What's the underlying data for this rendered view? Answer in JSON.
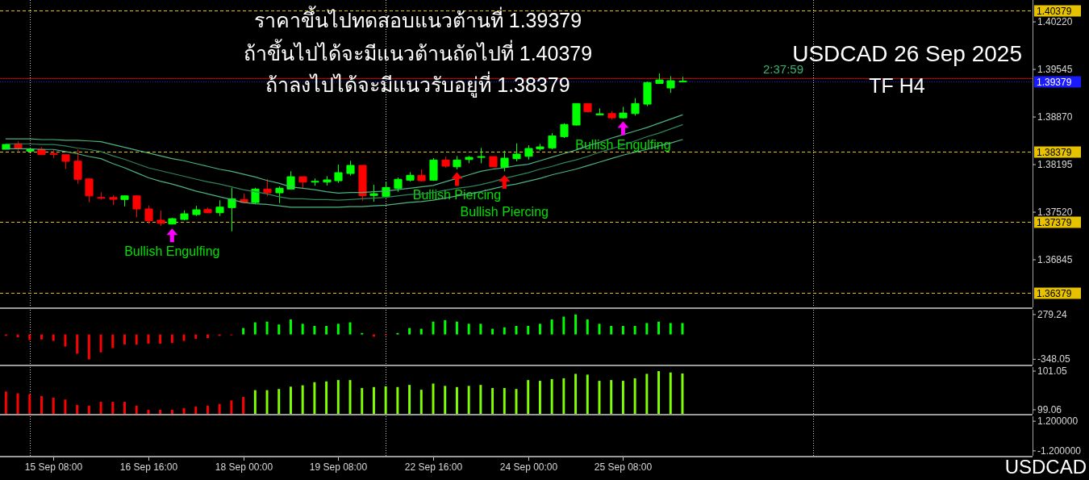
{
  "chart_data": [
    {
      "type": "candlestick",
      "title": "USDCAD 26 Sep 2025",
      "subtitle": "TF H4",
      "annotations": [
        "ราคาขึ้นไปทดสอบแนวต้านที่ 1.39379",
        "ถ้าขึ้นไปได้จะมีแนวต้านถัดไปที่ 1.40379",
        "ถ้าลงไปได้จะมีแนวรับอยู่ที่ 1.38379",
        "2:37:59",
        "USDCAD"
      ],
      "categories": [
        null,
        null,
        null,
        null,
        null,
        null,
        null,
        null,
        null,
        null,
        null,
        null,
        null,
        null,
        null,
        null,
        null,
        null,
        null,
        null,
        null,
        null,
        null,
        null,
        null,
        null,
        null,
        null,
        null,
        null,
        null,
        null,
        null,
        null,
        null,
        null,
        null,
        null,
        null,
        null,
        null,
        null,
        null,
        null,
        null,
        null,
        null,
        null,
        null,
        null,
        null,
        null,
        null,
        null,
        null,
        null,
        null,
        null,
        null,
        null,
        null,
        null,
        null,
        null,
        null,
        null,
        null,
        null,
        null,
        null,
        null,
        null,
        null,
        null,
        null,
        null,
        null,
        null,
        null,
        null,
        null,
        null,
        null,
        null,
        null,
        null,
        null
      ],
      "ohlc": [
        [
          1.38412,
          1.38481,
          1.38412,
          1.38481
        ],
        [
          1.38489,
          1.38527,
          1.38386,
          1.38432
        ],
        [
          1.38386,
          1.38412,
          1.38386,
          1.38412
        ],
        [
          1.38412,
          1.38443,
          1.38329,
          1.38336
        ],
        [
          1.38352,
          1.38401,
          1.3829,
          1.38344
        ],
        [
          1.38336,
          1.38336,
          1.38134,
          1.38241
        ],
        [
          1.38244,
          1.38412,
          1.37924,
          1.37986
        ],
        [
          1.37992,
          1.38,
          1.37661,
          1.37752
        ],
        [
          1.37729,
          1.37803,
          1.377,
          1.37722
        ],
        [
          1.37729,
          1.3776,
          1.3762,
          1.37703
        ],
        [
          1.377,
          1.37752,
          1.37603,
          1.37752
        ],
        [
          1.37752,
          1.37752,
          1.37448,
          1.37566
        ],
        [
          1.37566,
          1.37615,
          1.37356,
          1.37398
        ],
        [
          1.37406,
          1.37543,
          1.37325,
          1.37363
        ],
        [
          1.37352,
          1.3744,
          1.37345,
          1.37428
        ],
        [
          1.37417,
          1.37546,
          1.37406,
          1.37497
        ],
        [
          1.37486,
          1.37611,
          1.37466,
          1.37554
        ],
        [
          1.37558,
          1.37585,
          1.37505,
          1.37512
        ],
        [
          1.37512,
          1.37688,
          1.37466,
          1.37592
        ],
        [
          1.37585,
          1.37867,
          1.37249,
          1.37711
        ],
        [
          1.377,
          1.37787,
          1.37649,
          1.37657
        ],
        [
          1.37657,
          1.37867,
          1.37638,
          1.37848
        ],
        [
          1.37848,
          1.37992,
          1.37745,
          1.37795
        ],
        [
          1.37795,
          1.37886,
          1.37649,
          1.3786
        ],
        [
          1.37848,
          1.381,
          1.37848,
          1.38023
        ],
        [
          1.38023,
          1.38023,
          1.3786,
          1.37947
        ],
        [
          1.37947,
          1.38,
          1.37894,
          1.37958
        ],
        [
          1.37947,
          1.38031,
          1.37898,
          1.37978
        ],
        [
          1.37966,
          1.38195,
          1.37935,
          1.38081
        ],
        [
          1.38069,
          1.38249,
          1.38038,
          1.38184
        ],
        [
          1.38184,
          1.38184,
          1.3768,
          1.37755
        ],
        [
          1.37757,
          1.37909,
          1.37669,
          1.37783
        ],
        [
          1.37745,
          1.37955,
          1.37734,
          1.37871
        ],
        [
          1.3786,
          1.38012,
          1.37809,
          1.37986
        ],
        [
          1.37974,
          1.38089,
          1.37955,
          1.38043
        ],
        [
          1.38043,
          1.38126,
          1.37955,
          1.37966
        ],
        [
          1.37974,
          1.38287,
          1.37963,
          1.3826
        ],
        [
          1.3826,
          1.38306,
          1.38153,
          1.38172
        ],
        [
          1.38164,
          1.38317,
          1.38126,
          1.3826
        ],
        [
          1.38267,
          1.38317,
          1.38214,
          1.38298
        ],
        [
          1.38298,
          1.38432,
          1.38214,
          1.38309
        ],
        [
          1.38309,
          1.38309,
          1.38164,
          1.38164
        ],
        [
          1.38157,
          1.38393,
          1.381,
          1.38287
        ],
        [
          1.38279,
          1.38496,
          1.38241,
          1.38344
        ],
        [
          1.38313,
          1.3847,
          1.38267,
          1.38424
        ],
        [
          1.3842,
          1.38489,
          1.38393,
          1.38447
        ],
        [
          1.38432,
          1.38641,
          1.38412,
          1.38603
        ],
        [
          1.38592,
          1.38782,
          1.38572,
          1.38764
        ],
        [
          1.38756,
          1.39061,
          1.38748,
          1.39061
        ],
        [
          1.39061,
          1.39061,
          1.38935,
          1.38947
        ],
        [
          1.38901,
          1.38992,
          1.38901,
          1.38916
        ],
        [
          1.38919,
          1.38954,
          1.38832,
          1.38858
        ],
        [
          1.38858,
          1.39015,
          1.38847,
          1.38927
        ],
        [
          1.38919,
          1.39137,
          1.38889,
          1.39061
        ],
        [
          1.39053,
          1.39373,
          1.39022,
          1.39359
        ],
        [
          1.39347,
          1.39488,
          1.39347,
          1.39396
        ],
        [
          1.39282,
          1.3945,
          1.39213,
          1.39385
        ],
        [
          1.39372,
          1.39442,
          1.39365,
          1.39379
        ],
        null,
        null,
        null,
        null,
        null,
        null,
        null,
        null,
        null,
        null,
        null,
        null,
        null,
        null,
        null,
        null,
        null,
        null,
        null,
        null,
        null,
        null,
        null,
        null,
        null,
        null,
        null,
        null,
        null
      ],
      "colors": [
        "#00ff00",
        "#ff0000",
        "#00ff00",
        "#ff0000",
        "#ff0000",
        "#ff0000",
        "#ff0000",
        "#ff0000",
        "#ff0000",
        "#ff0000",
        "#00ff00",
        "#ff0000",
        "#ff0000",
        "#ff0000",
        "#00ff00",
        "#00ff00",
        "#00ff00",
        "#ff0000",
        "#00ff00",
        "#00ff00",
        "#ff0000",
        "#00ff00",
        "#ff0000",
        "#00ff00",
        "#00ff00",
        "#ff0000",
        "#00ff00",
        "#00ff00",
        "#00ff00",
        "#00ff00",
        "#ff0000",
        "#00ff00",
        "#00ff00",
        "#00ff00",
        "#00ff00",
        "#ff0000",
        "#00ff00",
        "#ff0000",
        "#00ff00",
        "#00ff00",
        "#00ff00",
        "#ff0000",
        "#00ff00",
        "#00ff00",
        "#00ff00",
        "#00ff00",
        "#00ff00",
        "#00ff00",
        "#00ff00",
        "#ff0000",
        "#00ff00",
        "#ff0000",
        "#00ff00",
        "#00ff00",
        "#00ff00",
        "#00ff00",
        "#00ff00",
        "#00ff00",
        null,
        null,
        null,
        null,
        null,
        null,
        null,
        null,
        null,
        null,
        null,
        null,
        null,
        null,
        null,
        null,
        null,
        null,
        null,
        null,
        null,
        null,
        null,
        null,
        null,
        null,
        null,
        null,
        null
      ],
      "series": [
        {
          "type": "line",
          "color": "#4db380",
          "values": [
            1.3856,
            1.3856,
            1.3856,
            1.3855,
            1.3855,
            1.3854,
            1.3854,
            1.3853,
            1.3852,
            1.3848,
            1.3844,
            1.384,
            1.3836,
            1.3832,
            1.3828,
            1.3825,
            1.3821,
            1.3817,
            1.3813,
            1.381,
            1.3806,
            1.3802,
            1.3797,
            1.3793,
            1.3788,
            1.3786,
            1.3784,
            1.3781,
            1.3779,
            1.378,
            1.378,
            1.3781,
            1.3782,
            1.3784,
            1.3786,
            1.3788,
            1.379,
            1.3795,
            1.38,
            1.3805,
            1.381,
            1.3813,
            1.3815,
            1.3818,
            1.382,
            1.3825,
            1.383,
            1.3835,
            1.384,
            1.3846,
            1.3851,
            1.3857,
            1.3862,
            1.3867,
            1.3872,
            1.3878,
            1.3884,
            1.389,
            null,
            null,
            null,
            null,
            null,
            null,
            null,
            null,
            null,
            null,
            null,
            null,
            null,
            null,
            null,
            null,
            null,
            null,
            null,
            null,
            null,
            null,
            null,
            null,
            null,
            null,
            null,
            null,
            null
          ]
        },
        {
          "type": "line",
          "color": "#2f855a",
          "values": [
            1.3849,
            1.3849,
            1.3849,
            1.3848,
            1.3848,
            1.3846,
            1.3843,
            1.3841,
            1.3838,
            1.3832,
            1.3827,
            1.3821,
            1.3815,
            1.3811,
            1.3807,
            1.3803,
            1.3799,
            1.3795,
            1.3792,
            1.3788,
            1.3784,
            1.3781,
            1.3778,
            1.3774,
            1.3771,
            1.3771,
            1.377,
            1.377,
            1.3769,
            1.377,
            1.3771,
            1.3772,
            1.3773,
            1.3775,
            1.3777,
            1.3778,
            1.378,
            1.3783,
            1.3786,
            1.3788,
            1.3791,
            1.3795,
            1.38,
            1.3804,
            1.3808,
            1.3813,
            1.3817,
            1.3822,
            1.3826,
            1.3831,
            1.3837,
            1.3842,
            1.3847,
            1.3853,
            1.3859,
            1.3864,
            1.387,
            1.3876,
            null,
            null,
            null,
            null,
            null,
            null,
            null,
            null,
            null,
            null,
            null,
            null,
            null,
            null,
            null,
            null,
            null,
            null,
            null,
            null,
            null,
            null,
            null,
            null,
            null,
            null,
            null,
            null,
            null
          ]
        },
        {
          "type": "line",
          "color": "#4db380",
          "values": [
            1.3842,
            1.3842,
            1.3842,
            1.3841,
            1.3841,
            1.3838,
            1.3835,
            1.3831,
            1.3828,
            1.3821,
            1.3815,
            1.3808,
            1.3801,
            1.3796,
            1.3792,
            1.3787,
            1.3782,
            1.3778,
            1.3774,
            1.377,
            1.3766,
            1.3764,
            1.3763,
            1.3761,
            1.3759,
            1.3759,
            1.3759,
            1.3759,
            1.3759,
            1.376,
            1.376,
            1.3761,
            1.3762,
            1.3764,
            1.3766,
            1.3767,
            1.3769,
            1.3772,
            1.3775,
            1.3778,
            1.3781,
            1.3785,
            1.3789,
            1.3792,
            1.3796,
            1.38,
            1.3805,
            1.3809,
            1.3813,
            1.3818,
            1.3823,
            1.3828,
            1.3833,
            1.3837,
            1.3841,
            1.3846,
            1.385,
            1.3855,
            null,
            null,
            null,
            null,
            null,
            null,
            null,
            null,
            null,
            null,
            null,
            null,
            null,
            null,
            null,
            null,
            null,
            null,
            null,
            null,
            null,
            null,
            null,
            null,
            null,
            null,
            null,
            null,
            null
          ]
        },
        {
          "type": "scatter",
          "name": "Bullish Engulfing",
          "color": "#ff00ff",
          "marker": "triangle",
          "values": [
            null,
            null,
            null,
            null,
            null,
            null,
            null,
            null,
            null,
            null,
            null,
            null,
            null,
            null,
            1.3719,
            null,
            null,
            null,
            null,
            null,
            null,
            null,
            null,
            null,
            null,
            null,
            null,
            null,
            null,
            null,
            null,
            null,
            null,
            null,
            null,
            null,
            null,
            null,
            null,
            null,
            null,
            null,
            null,
            null,
            null,
            null,
            null,
            null,
            null,
            null,
            null,
            null,
            1.3871,
            null,
            null,
            null,
            null,
            null,
            null,
            null,
            null,
            null,
            null,
            null,
            null,
            null,
            null,
            null,
            null,
            null,
            null,
            null,
            null,
            null,
            null,
            null,
            null,
            null,
            null,
            null,
            null,
            null,
            null,
            null,
            null,
            null,
            null
          ]
        },
        {
          "type": "scatter",
          "name": "Bullish Piercing",
          "color": "#ff0000",
          "marker": "triangle",
          "values": [
            null,
            null,
            null,
            null,
            null,
            null,
            null,
            null,
            null,
            null,
            null,
            null,
            null,
            null,
            null,
            null,
            null,
            null,
            null,
            null,
            null,
            null,
            null,
            null,
            null,
            null,
            null,
            null,
            null,
            null,
            null,
            null,
            null,
            null,
            null,
            null,
            null,
            null,
            1.3799,
            null,
            null,
            null,
            1.3795,
            null,
            null,
            null,
            null,
            null,
            null,
            null,
            null,
            null,
            null,
            null,
            null,
            null,
            null,
            null,
            null,
            null,
            null,
            null,
            null,
            null,
            null,
            null,
            null,
            null,
            null,
            null,
            null,
            null,
            null,
            null,
            null,
            null,
            null,
            null,
            null,
            null,
            null,
            null,
            null,
            null,
            null,
            null,
            null
          ]
        }
      ],
      "ylim": [
        1.3617,
        1.4053
      ],
      "yticks": [
        {
          "value": 1.4022,
          "label": "1.40220"
        },
        {
          "value": 1.39545,
          "label": "1.39545"
        },
        {
          "value": 1.3887,
          "label": "1.38870"
        },
        {
          "value": 1.38195,
          "label": "1.38195"
        },
        {
          "value": 1.3752,
          "label": "1.37520"
        },
        {
          "value": 1.36845,
          "label": "1.36845"
        }
      ],
      "ref_lines": [
        {
          "axis": "y",
          "value": 1.40379,
          "label": "1.40379",
          "color": "#e6c200",
          "line_style": "dashed"
        },
        {
          "axis": "y",
          "value": 1.38379,
          "label": "1.38379",
          "color": "#e6c200",
          "line_style": "dashed"
        },
        {
          "axis": "y",
          "value": 1.37379,
          "label": "1.37379",
          "color": "#e6c200",
          "line_style": "dashed"
        },
        {
          "axis": "y",
          "value": 1.36379,
          "label": "1.36379",
          "color": "#e6c200",
          "line_style": "dashed"
        },
        {
          "axis": "y",
          "value": 1.3942,
          "color": "#c00000",
          "line_style": "solid"
        },
        {
          "axis": "y",
          "value": 1.39379,
          "label": "1.39379",
          "color": "#1a1aff",
          "line_style": "dotted"
        }
      ],
      "grid": "x",
      "tick_labels": "y"
    },
    {
      "type": "bar",
      "categories": [
        null,
        null,
        null,
        null,
        null,
        null,
        null,
        null,
        null,
        null,
        null,
        null,
        null,
        null,
        null,
        null,
        null,
        null,
        null,
        null,
        null,
        null,
        null,
        null,
        null,
        null,
        null,
        null,
        null,
        null,
        null,
        null,
        null,
        null,
        null,
        null,
        null,
        null,
        null,
        null,
        null,
        null,
        null,
        null,
        null,
        null,
        null,
        null,
        null,
        null,
        null,
        null,
        null,
        null,
        null,
        null,
        null,
        null,
        null,
        null,
        null,
        null,
        null,
        null,
        null,
        null,
        null,
        null,
        null,
        null,
        null,
        null,
        null,
        null,
        null,
        null,
        null,
        null,
        null,
        null,
        null,
        null,
        null,
        null,
        null,
        null,
        null
      ],
      "values": [
        -20,
        -40,
        -80,
        -70,
        -90,
        -170,
        -270,
        -350,
        -250,
        -190,
        -140,
        -140,
        -130,
        -130,
        -120,
        -90,
        -60,
        -50,
        -20,
        -10,
        90,
        170,
        180,
        140,
        210,
        150,
        120,
        120,
        150,
        170,
        20,
        -30,
        -10,
        20,
        90,
        80,
        180,
        200,
        180,
        150,
        150,
        80,
        100,
        120,
        120,
        150,
        210,
        250,
        280,
        210,
        150,
        120,
        120,
        120,
        160,
        180,
        160,
        160,
        null,
        null,
        null,
        null,
        null,
        null,
        null,
        null,
        null,
        null,
        null,
        null,
        null,
        null,
        null,
        null,
        null,
        null,
        null,
        null,
        null,
        null,
        null,
        null,
        null,
        null,
        null,
        null,
        null
      ],
      "colors": [
        "#ff0000",
        "#ff0000",
        "#ff0000",
        "#ff0000",
        "#ff0000",
        "#ff0000",
        "#ff0000",
        "#ff0000",
        "#ff0000",
        "#ff0000",
        "#ff0000",
        "#ff0000",
        "#ff0000",
        "#ff0000",
        "#ff0000",
        "#ff0000",
        "#ff0000",
        "#ff0000",
        "#ff0000",
        "#ff0000",
        "#00ff00",
        "#00ff00",
        "#00ff00",
        "#00ff00",
        "#00ff00",
        "#00ff00",
        "#00ff00",
        "#00ff00",
        "#00ff00",
        "#00ff00",
        "#00ff00",
        "#ff0000",
        "#ff0000",
        "#00ff00",
        "#00ff00",
        "#00ff00",
        "#00ff00",
        "#00ff00",
        "#00ff00",
        "#00ff00",
        "#00ff00",
        "#00ff00",
        "#00ff00",
        "#00ff00",
        "#00ff00",
        "#00ff00",
        "#00ff00",
        "#00ff00",
        "#00ff00",
        "#00ff00",
        "#00ff00",
        "#00ff00",
        "#00ff00",
        "#00ff00",
        "#00ff00",
        "#00ff00",
        "#00ff00",
        "#00ff00",
        null,
        null,
        null,
        null,
        null,
        null,
        null,
        null,
        null,
        null,
        null,
        null,
        null,
        null,
        null,
        null,
        null,
        null,
        null,
        null,
        null,
        null,
        null,
        null,
        null,
        null,
        null,
        null,
        null
      ],
      "ylim": [
        -423,
        346
      ],
      "yticks": [
        279.24,
        -348.05
      ],
      "grid": "x",
      "tick_labels": "y"
    },
    {
      "type": "bar",
      "categories": [
        null,
        null,
        null,
        null,
        null,
        null,
        null,
        null,
        null,
        null,
        null,
        null,
        null,
        null,
        null,
        null,
        null,
        null,
        null,
        null,
        null,
        null,
        null,
        null,
        null,
        null,
        null,
        null,
        null,
        null,
        null,
        null,
        null,
        null,
        null,
        null,
        null,
        null,
        null,
        null,
        null,
        null,
        null,
        null,
        null,
        null,
        null,
        null,
        null,
        null,
        null,
        null,
        null,
        null,
        null,
        null,
        null,
        null,
        null,
        null,
        null,
        null,
        null,
        null,
        null,
        null,
        null,
        null,
        null,
        null,
        null,
        null,
        null,
        null,
        null,
        null,
        null,
        null,
        null,
        null,
        null,
        null,
        null,
        null,
        null,
        null,
        null
      ],
      "values": [
        100.0,
        99.91,
        99.86,
        99.77,
        99.68,
        99.59,
        99.31,
        99.27,
        99.47,
        99.47,
        99.47,
        99.27,
        99.06,
        99.06,
        99.06,
        99.15,
        99.22,
        99.27,
        99.36,
        99.54,
        99.72,
        100.07,
        100.07,
        100.13,
        100.25,
        100.32,
        100.48,
        100.52,
        100.59,
        100.59,
        100.18,
        100.23,
        100.27,
        100.23,
        100.34,
        100.09,
        100.41,
        100.29,
        100.23,
        100.29,
        100.34,
        100.18,
        100.18,
        100.13,
        100.59,
        100.55,
        100.64,
        100.68,
        100.91,
        100.87,
        100.55,
        100.59,
        100.55,
        100.68,
        100.91,
        101.05,
        100.98,
        100.93,
        null,
        null,
        null,
        null,
        null,
        null,
        null,
        null,
        null,
        null,
        null,
        null,
        null,
        null,
        null,
        null,
        null,
        null,
        null,
        null,
        null,
        null,
        null,
        null,
        null,
        null,
        null,
        null,
        null
      ],
      "colors": [
        "#ff0000",
        "#ff0000",
        "#ff0000",
        "#ff0000",
        "#ff0000",
        "#ff0000",
        "#ff0000",
        "#ff0000",
        "#ff0000",
        "#ff0000",
        "#ff0000",
        "#ff0000",
        "#ff0000",
        "#ff0000",
        "#ff0000",
        "#ff0000",
        "#ff0000",
        "#ff0000",
        "#ff0000",
        "#ff0000",
        "#ff0000",
        "#7fff00",
        "#7fff00",
        "#7fff00",
        "#7fff00",
        "#7fff00",
        "#7fff00",
        "#7fff00",
        "#7fff00",
        "#7fff00",
        "#7fff00",
        "#7fff00",
        "#7fff00",
        "#7fff00",
        "#7fff00",
        "#7fff00",
        "#7fff00",
        "#7fff00",
        "#7fff00",
        "#7fff00",
        "#7fff00",
        "#7fff00",
        "#7fff00",
        "#7fff00",
        "#7fff00",
        "#7fff00",
        "#7fff00",
        "#7fff00",
        "#7fff00",
        "#7fff00",
        "#7fff00",
        "#7fff00",
        "#7fff00",
        "#7fff00",
        "#7fff00",
        "#7fff00",
        "#7fff00",
        "#7fff00",
        null,
        null,
        null,
        null,
        null,
        null,
        null,
        null,
        null,
        null,
        null,
        null,
        null,
        null,
        null,
        null,
        null,
        null,
        null,
        null,
        null,
        null,
        null,
        null,
        null,
        null,
        null,
        null,
        null
      ],
      "ylim": [
        98.85,
        101.26
      ],
      "yticks": [
        101.05,
        99.06
      ],
      "grid": "x",
      "tick_labels": "y"
    },
    {
      "type": "line",
      "categories": [
        null,
        null,
        null,
        null,
        "15 Sep 08:00",
        null,
        null,
        null,
        null,
        null,
        null,
        null,
        "16 Sep 16:00",
        null,
        null,
        null,
        null,
        null,
        null,
        null,
        "18 Sep 00:00",
        null,
        null,
        null,
        null,
        null,
        null,
        null,
        "19 Sep 08:00",
        null,
        null,
        null,
        null,
        null,
        null,
        null,
        "22 Sep 16:00",
        null,
        null,
        null,
        null,
        null,
        null,
        null,
        "24 Sep 00:00",
        null,
        null,
        null,
        null,
        null,
        null,
        null,
        "25 Sep 08:00",
        null,
        null,
        null,
        null,
        null,
        null,
        null,
        null,
        null,
        null,
        null,
        null,
        null,
        null,
        null,
        null,
        null,
        null,
        null,
        null,
        null,
        null,
        null,
        null,
        null,
        null,
        null,
        null,
        null,
        null,
        null,
        null,
        null,
        null
      ],
      "ylim": [
        -1.6,
        1.6
      ],
      "yticks": [
        {
          "value": 1.2,
          "label": "1.200000"
        },
        {
          "value": -1.2,
          "label": "-1.200000"
        }
      ],
      "grid": "x"
    }
  ]
}
